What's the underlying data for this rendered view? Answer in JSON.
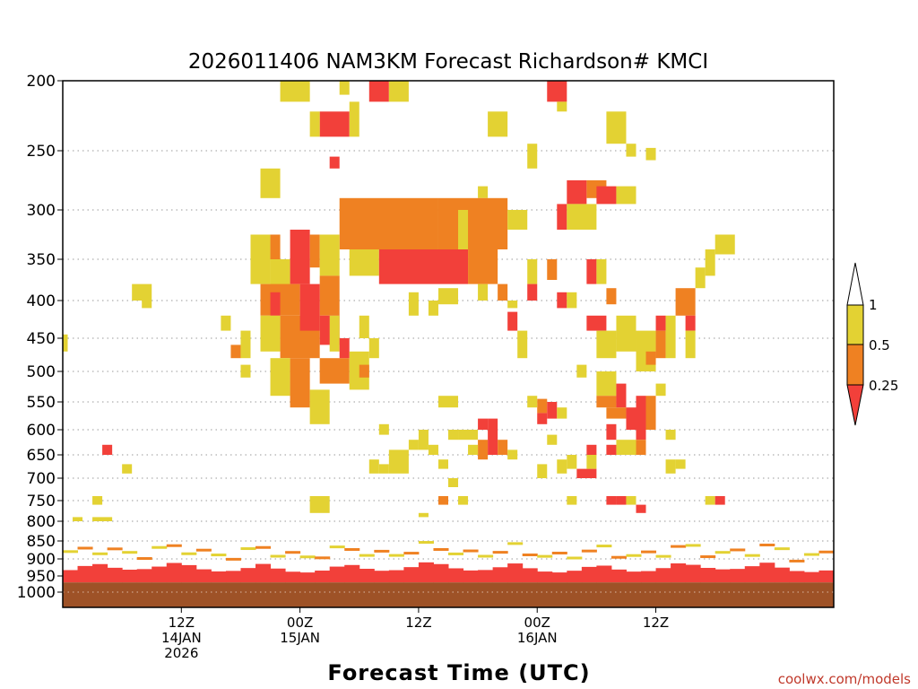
{
  "chart_data": {
    "type": "heatmap",
    "title": "2026011406 NAM3KM Forecast Richardson# KMCI",
    "xlabel": "Forecast Time (UTC)",
    "ylabel": "",
    "y_scale": "pressure (hPa), reversed, non-linear",
    "ylim": [
      1000,
      200
    ],
    "xlim": [
      6,
      84
    ],
    "grid": "dotted horizontal lines at y ticks",
    "y_ticks": [
      200,
      250,
      300,
      350,
      400,
      450,
      500,
      550,
      600,
      650,
      700,
      750,
      800,
      850,
      900,
      950,
      1000
    ],
    "x_ticks": [
      {
        "hour": 18,
        "line1": "12Z",
        "line2": "14JAN",
        "line3": "2026"
      },
      {
        "hour": 30,
        "line1": "00Z",
        "line2": "15JAN",
        "line3": ""
      },
      {
        "hour": 42,
        "line1": "12Z",
        "line2": "",
        "line3": ""
      },
      {
        "hour": 54,
        "line1": "00Z",
        "line2": "16JAN",
        "line3": ""
      },
      {
        "hour": 66,
        "line1": "12Z",
        "line2": "",
        "line3": ""
      }
    ],
    "legend": {
      "placement": "right",
      "entries": [
        {
          "label": "1",
          "value": 1,
          "color": "#ffffff"
        },
        {
          "label": "0.5",
          "value": 0.5,
          "color": "#e3d233"
        },
        {
          "label": "0.25",
          "value": 0.25,
          "color": "#ef8122"
        },
        {
          "label": "",
          "value": 0,
          "color": "#f2403a"
        }
      ]
    },
    "colors": {
      "lt_0_25": "#f2403a",
      "0_25_to_0_5": "#ef8122",
      "0_5_to_1": "#e3d233",
      "ground": "#9e5227"
    },
    "surface_pressure_hpa": 970,
    "hour_step": 1.5,
    "cells": [
      {
        "c": "y",
        "h0": 28,
        "h1": 31,
        "p0": 200,
        "p1": 215
      },
      {
        "c": "r",
        "h0": 37,
        "h1": 39,
        "p0": 200,
        "p1": 215
      },
      {
        "c": "y",
        "h0": 39,
        "h1": 41,
        "p0": 200,
        "p1": 215
      },
      {
        "c": "y",
        "h0": 34,
        "h1": 35,
        "p0": 200,
        "p1": 210
      },
      {
        "c": "r",
        "h0": 55,
        "h1": 57,
        "p0": 200,
        "p1": 215
      },
      {
        "c": "y",
        "h0": 56,
        "h1": 57,
        "p0": 215,
        "p1": 222
      },
      {
        "c": "r",
        "h0": 32,
        "h1": 35,
        "p0": 222,
        "p1": 240
      },
      {
        "c": "y",
        "h0": 31,
        "h1": 32,
        "p0": 222,
        "p1": 240
      },
      {
        "c": "y",
        "h0": 35,
        "h1": 36,
        "p0": 215,
        "p1": 240
      },
      {
        "c": "r",
        "h0": 33,
        "h1": 34,
        "p0": 255,
        "p1": 265
      },
      {
        "c": "y",
        "h0": 49,
        "h1": 51,
        "p0": 222,
        "p1": 240
      },
      {
        "c": "y",
        "h0": 53,
        "h1": 54,
        "p0": 245,
        "p1": 265
      },
      {
        "c": "y",
        "h0": 61,
        "h1": 63,
        "p0": 222,
        "p1": 245
      },
      {
        "c": "y",
        "h0": 63,
        "h1": 64,
        "p0": 245,
        "p1": 255
      },
      {
        "c": "y",
        "h0": 65,
        "h1": 66,
        "p0": 248,
        "p1": 258
      },
      {
        "c": "y",
        "h0": 26,
        "h1": 28,
        "p0": 265,
        "p1": 290
      },
      {
        "c": "y",
        "h0": 48,
        "h1": 49,
        "p0": 280,
        "p1": 290
      },
      {
        "c": "r",
        "h0": 57,
        "h1": 59,
        "p0": 275,
        "p1": 295
      },
      {
        "c": "o",
        "h0": 59,
        "h1": 61,
        "p0": 275,
        "p1": 290
      },
      {
        "c": "r",
        "h0": 60,
        "h1": 62,
        "p0": 280,
        "p1": 295
      },
      {
        "c": "y",
        "h0": 62,
        "h1": 64,
        "p0": 280,
        "p1": 295
      },
      {
        "c": "o",
        "h0": 34,
        "h1": 44,
        "p0": 290,
        "p1": 340
      },
      {
        "c": "o",
        "h0": 44,
        "h1": 51,
        "p0": 290,
        "p1": 340
      },
      {
        "c": "y",
        "h0": 51,
        "h1": 53,
        "p0": 300,
        "p1": 320
      },
      {
        "c": "r",
        "h0": 56,
        "h1": 57,
        "p0": 295,
        "p1": 320
      },
      {
        "c": "y",
        "h0": 57,
        "h1": 60,
        "p0": 295,
        "p1": 320
      },
      {
        "c": "y",
        "h0": 25,
        "h1": 27,
        "p0": 325,
        "p1": 380
      },
      {
        "c": "o",
        "h0": 27,
        "h1": 28,
        "p0": 325,
        "p1": 350
      },
      {
        "c": "y",
        "h0": 27,
        "h1": 29,
        "p0": 350,
        "p1": 385
      },
      {
        "c": "r",
        "h0": 29,
        "h1": 31,
        "p0": 320,
        "p1": 380
      },
      {
        "c": "o",
        "h0": 31,
        "h1": 32,
        "p0": 325,
        "p1": 360
      },
      {
        "c": "y",
        "h0": 32,
        "h1": 34,
        "p0": 325,
        "p1": 370
      },
      {
        "c": "o",
        "h0": 32,
        "h1": 34,
        "p0": 370,
        "p1": 420
      },
      {
        "c": "r",
        "h0": 32,
        "h1": 34,
        "p0": 420,
        "p1": 460
      },
      {
        "c": "y",
        "h0": 35,
        "h1": 38,
        "p0": 340,
        "p1": 370
      },
      {
        "c": "r",
        "h0": 38,
        "h1": 47,
        "p0": 340,
        "p1": 380
      },
      {
        "c": "o",
        "h0": 47,
        "h1": 50,
        "p0": 340,
        "p1": 380
      },
      {
        "c": "y",
        "h0": 46,
        "h1": 47,
        "p0": 300,
        "p1": 340
      },
      {
        "c": "o",
        "h0": 26,
        "h1": 30,
        "p0": 380,
        "p1": 420
      },
      {
        "c": "r",
        "h0": 27,
        "h1": 28,
        "p0": 390,
        "p1": 420
      },
      {
        "c": "o",
        "h0": 28,
        "h1": 32,
        "p0": 420,
        "p1": 480
      },
      {
        "c": "r",
        "h0": 30,
        "h1": 32,
        "p0": 380,
        "p1": 440
      },
      {
        "c": "y",
        "h0": 26,
        "h1": 28,
        "p0": 420,
        "p1": 470
      },
      {
        "c": "y",
        "h0": 24,
        "h1": 25,
        "p0": 440,
        "p1": 480
      },
      {
        "c": "o",
        "h0": 23,
        "h1": 24,
        "p0": 460,
        "p1": 480
      },
      {
        "c": "y",
        "h0": 24,
        "h1": 25,
        "p0": 490,
        "p1": 510
      },
      {
        "c": "y",
        "h0": 27,
        "h1": 29,
        "p0": 480,
        "p1": 540
      },
      {
        "c": "o",
        "h0": 29,
        "h1": 31,
        "p0": 480,
        "p1": 560
      },
      {
        "c": "y",
        "h0": 31,
        "h1": 33,
        "p0": 530,
        "p1": 590
      },
      {
        "c": "o",
        "h0": 32,
        "h1": 35,
        "p0": 480,
        "p1": 520
      },
      {
        "c": "y",
        "h0": 33,
        "h1": 34,
        "p0": 420,
        "p1": 470
      },
      {
        "c": "r",
        "h0": 34,
        "h1": 35,
        "p0": 450,
        "p1": 480
      },
      {
        "c": "y",
        "h0": 35,
        "h1": 37,
        "p0": 470,
        "p1": 530
      },
      {
        "c": "o",
        "h0": 36,
        "h1": 37,
        "p0": 490,
        "p1": 510
      },
      {
        "c": "y",
        "h0": 36,
        "h1": 37,
        "p0": 420,
        "p1": 450
      },
      {
        "c": "y",
        "h0": 37,
        "h1": 38,
        "p0": 450,
        "p1": 480
      },
      {
        "c": "y",
        "h0": 13,
        "h1": 15,
        "p0": 380,
        "p1": 400
      },
      {
        "c": "y",
        "h0": 14,
        "h1": 15,
        "p0": 400,
        "p1": 410
      },
      {
        "c": "y",
        "h0": 22,
        "h1": 23,
        "p0": 420,
        "p1": 440
      },
      {
        "c": "y",
        "h0": 6,
        "h1": 6.5,
        "p0": 445,
        "p1": 470
      },
      {
        "c": "y",
        "h0": 41,
        "h1": 42,
        "p0": 390,
        "p1": 420
      },
      {
        "c": "y",
        "h0": 43,
        "h1": 44,
        "p0": 400,
        "p1": 420
      },
      {
        "c": "y",
        "h0": 44,
        "h1": 46,
        "p0": 385,
        "p1": 405
      },
      {
        "c": "y",
        "h0": 48,
        "h1": 49,
        "p0": 380,
        "p1": 400
      },
      {
        "c": "o",
        "h0": 50,
        "h1": 51,
        "p0": 380,
        "p1": 400
      },
      {
        "c": "y",
        "h0": 51,
        "h1": 52,
        "p0": 400,
        "p1": 410
      },
      {
        "c": "r",
        "h0": 51,
        "h1": 52,
        "p0": 415,
        "p1": 440
      },
      {
        "c": "y",
        "h0": 52,
        "h1": 53,
        "p0": 440,
        "p1": 480
      },
      {
        "c": "y",
        "h0": 53,
        "h1": 54,
        "p0": 350,
        "p1": 380
      },
      {
        "c": "r",
        "h0": 53,
        "h1": 54,
        "p0": 380,
        "p1": 400
      },
      {
        "c": "o",
        "h0": 55,
        "h1": 56,
        "p0": 350,
        "p1": 375
      },
      {
        "c": "r",
        "h0": 56,
        "h1": 57,
        "p0": 390,
        "p1": 410
      },
      {
        "c": "y",
        "h0": 57,
        "h1": 58,
        "p0": 390,
        "p1": 410
      },
      {
        "c": "r",
        "h0": 59,
        "h1": 60,
        "p0": 350,
        "p1": 380
      },
      {
        "c": "y",
        "h0": 60,
        "h1": 61,
        "p0": 350,
        "p1": 380
      },
      {
        "c": "r",
        "h0": 59,
        "h1": 61,
        "p0": 420,
        "p1": 440
      },
      {
        "c": "o",
        "h0": 61,
        "h1": 62,
        "p0": 385,
        "p1": 405
      },
      {
        "c": "y",
        "h0": 60,
        "h1": 62,
        "p0": 440,
        "p1": 480
      },
      {
        "c": "y",
        "h0": 58,
        "h1": 59,
        "p0": 490,
        "p1": 510
      },
      {
        "c": "y",
        "h0": 62,
        "h1": 64,
        "p0": 420,
        "p1": 470
      },
      {
        "c": "y",
        "h0": 64,
        "h1": 66,
        "p0": 440,
        "p1": 500
      },
      {
        "c": "o",
        "h0": 65,
        "h1": 66,
        "p0": 470,
        "p1": 490
      },
      {
        "c": "r",
        "h0": 66,
        "h1": 67,
        "p0": 420,
        "p1": 440
      },
      {
        "c": "o",
        "h0": 66,
        "h1": 67,
        "p0": 440,
        "p1": 480
      },
      {
        "c": "y",
        "h0": 67,
        "h1": 68,
        "p0": 420,
        "p1": 480
      },
      {
        "c": "o",
        "h0": 68,
        "h1": 70,
        "p0": 385,
        "p1": 420
      },
      {
        "c": "r",
        "h0": 69,
        "h1": 70,
        "p0": 420,
        "p1": 440
      },
      {
        "c": "y",
        "h0": 69,
        "h1": 70,
        "p0": 440,
        "p1": 480
      },
      {
        "c": "y",
        "h0": 70,
        "h1": 71,
        "p0": 360,
        "p1": 385
      },
      {
        "c": "y",
        "h0": 71,
        "h1": 72,
        "p0": 340,
        "p1": 370
      },
      {
        "c": "y",
        "h0": 72,
        "h1": 74,
        "p0": 325,
        "p1": 345
      },
      {
        "c": "y",
        "h0": 60,
        "h1": 62,
        "p0": 500,
        "p1": 540
      },
      {
        "c": "o",
        "h0": 60,
        "h1": 62,
        "p0": 540,
        "p1": 560
      },
      {
        "c": "r",
        "h0": 62,
        "h1": 63,
        "p0": 520,
        "p1": 560
      },
      {
        "c": "r",
        "h0": 63,
        "h1": 65,
        "p0": 560,
        "p1": 600
      },
      {
        "c": "o",
        "h0": 61,
        "h1": 63,
        "p0": 560,
        "p1": 580
      },
      {
        "c": "r",
        "h0": 64,
        "h1": 65,
        "p0": 540,
        "p1": 570
      },
      {
        "c": "o",
        "h0": 65,
        "h1": 66,
        "p0": 540,
        "p1": 600
      },
      {
        "c": "y",
        "h0": 66,
        "h1": 67,
        "p0": 520,
        "p1": 540
      },
      {
        "c": "r",
        "h0": 61,
        "h1": 62,
        "p0": 590,
        "p1": 620
      },
      {
        "c": "r",
        "h0": 64,
        "h1": 65,
        "p0": 600,
        "p1": 620
      },
      {
        "c": "o",
        "h0": 64,
        "h1": 65,
        "p0": 620,
        "p1": 650
      },
      {
        "c": "y",
        "h0": 62,
        "h1": 64,
        "p0": 620,
        "p1": 650
      },
      {
        "c": "r",
        "h0": 59,
        "h1": 60,
        "p0": 630,
        "p1": 650
      },
      {
        "c": "r",
        "h0": 61,
        "h1": 62,
        "p0": 630,
        "p1": 650
      },
      {
        "c": "y",
        "h0": 67,
        "h1": 68,
        "p0": 600,
        "p1": 620
      },
      {
        "c": "y",
        "h0": 67,
        "h1": 68,
        "p0": 660,
        "p1": 690
      },
      {
        "c": "y",
        "h0": 68,
        "h1": 69,
        "p0": 660,
        "p1": 680
      },
      {
        "c": "o",
        "h0": 54,
        "h1": 55,
        "p0": 545,
        "p1": 570
      },
      {
        "c": "r",
        "h0": 54,
        "h1": 55,
        "p0": 570,
        "p1": 590
      },
      {
        "c": "r",
        "h0": 55,
        "h1": 56,
        "p0": 550,
        "p1": 580
      },
      {
        "c": "y",
        "h0": 56,
        "h1": 57,
        "p0": 560,
        "p1": 580
      },
      {
        "c": "y",
        "h0": 53,
        "h1": 54,
        "p0": 540,
        "p1": 560
      },
      {
        "c": "y",
        "h0": 55,
        "h1": 56,
        "p0": 610,
        "p1": 630
      },
      {
        "c": "y",
        "h0": 57,
        "h1": 58,
        "p0": 650,
        "p1": 680
      },
      {
        "c": "r",
        "h0": 58,
        "h1": 60,
        "p0": 680,
        "p1": 700
      },
      {
        "c": "y",
        "h0": 59,
        "h1": 60,
        "p0": 650,
        "p1": 680
      },
      {
        "c": "y",
        "h0": 56,
        "h1": 57,
        "p0": 660,
        "p1": 690
      },
      {
        "c": "y",
        "h0": 54,
        "h1": 55,
        "p0": 670,
        "p1": 700
      },
      {
        "c": "r",
        "h0": 48,
        "h1": 49,
        "p0": 580,
        "p1": 600
      },
      {
        "c": "o",
        "h0": 48,
        "h1": 49,
        "p0": 620,
        "p1": 660
      },
      {
        "c": "r",
        "h0": 49,
        "h1": 50,
        "p0": 580,
        "p1": 650
      },
      {
        "c": "o",
        "h0": 50,
        "h1": 51,
        "p0": 620,
        "p1": 650
      },
      {
        "c": "y",
        "h0": 47,
        "h1": 48,
        "p0": 630,
        "p1": 650
      },
      {
        "c": "y",
        "h0": 51,
        "h1": 52,
        "p0": 640,
        "p1": 660
      },
      {
        "c": "y",
        "h0": 46,
        "h1": 48,
        "p0": 600,
        "p1": 620
      },
      {
        "c": "y",
        "h0": 44,
        "h1": 46,
        "p0": 540,
        "p1": 560
      },
      {
        "c": "y",
        "h0": 45,
        "h1": 46,
        "p0": 600,
        "p1": 620
      },
      {
        "c": "y",
        "h0": 41,
        "h1": 42,
        "p0": 620,
        "p1": 640
      },
      {
        "c": "y",
        "h0": 42,
        "h1": 43,
        "p0": 600,
        "p1": 640
      },
      {
        "c": "y",
        "h0": 39,
        "h1": 41,
        "p0": 640,
        "p1": 690
      },
      {
        "c": "y",
        "h0": 38,
        "h1": 39,
        "p0": 670,
        "p1": 690
      },
      {
        "c": "y",
        "h0": 37,
        "h1": 38,
        "p0": 660,
        "p1": 690
      },
      {
        "c": "y",
        "h0": 43,
        "h1": 44,
        "p0": 630,
        "p1": 650
      },
      {
        "c": "y",
        "h0": 44,
        "h1": 45,
        "p0": 660,
        "p1": 680
      },
      {
        "c": "y",
        "h0": 45,
        "h1": 46,
        "p0": 700,
        "p1": 720
      },
      {
        "c": "y",
        "h0": 38,
        "h1": 39,
        "p0": 590,
        "p1": 610
      },
      {
        "c": "y",
        "h0": 31,
        "h1": 33,
        "p0": 740,
        "p1": 780
      },
      {
        "c": "y",
        "h0": 46,
        "h1": 47,
        "p0": 740,
        "p1": 760
      },
      {
        "c": "o",
        "h0": 44,
        "h1": 45,
        "p0": 740,
        "p1": 760
      },
      {
        "c": "y",
        "h0": 42,
        "h1": 43,
        "p0": 780,
        "p1": 790
      },
      {
        "c": "r",
        "h0": 10,
        "h1": 11,
        "p0": 630,
        "p1": 650
      },
      {
        "c": "y",
        "h0": 12,
        "h1": 13,
        "p0": 670,
        "p1": 690
      },
      {
        "c": "y",
        "h0": 9,
        "h1": 10,
        "p0": 740,
        "p1": 760
      },
      {
        "c": "y",
        "h0": 9,
        "h1": 11,
        "p0": 790,
        "p1": 800
      },
      {
        "c": "y",
        "h0": 7,
        "h1": 8,
        "p0": 790,
        "p1": 800
      },
      {
        "c": "y",
        "h0": 57,
        "h1": 58,
        "p0": 740,
        "p1": 760
      },
      {
        "c": "r",
        "h0": 61,
        "h1": 62,
        "p0": 740,
        "p1": 760
      },
      {
        "c": "r",
        "h0": 62,
        "h1": 63,
        "p0": 740,
        "p1": 760
      },
      {
        "c": "y",
        "h0": 63,
        "h1": 64,
        "p0": 740,
        "p1": 760
      },
      {
        "c": "r",
        "h0": 64,
        "h1": 65,
        "p0": 760,
        "p1": 780
      },
      {
        "c": "y",
        "h0": 71,
        "h1": 72,
        "p0": 740,
        "p1": 760
      },
      {
        "c": "r",
        "h0": 72,
        "h1": 73,
        "p0": 740,
        "p1": 760
      }
    ]
  },
  "credit": "coolwx.com/models"
}
